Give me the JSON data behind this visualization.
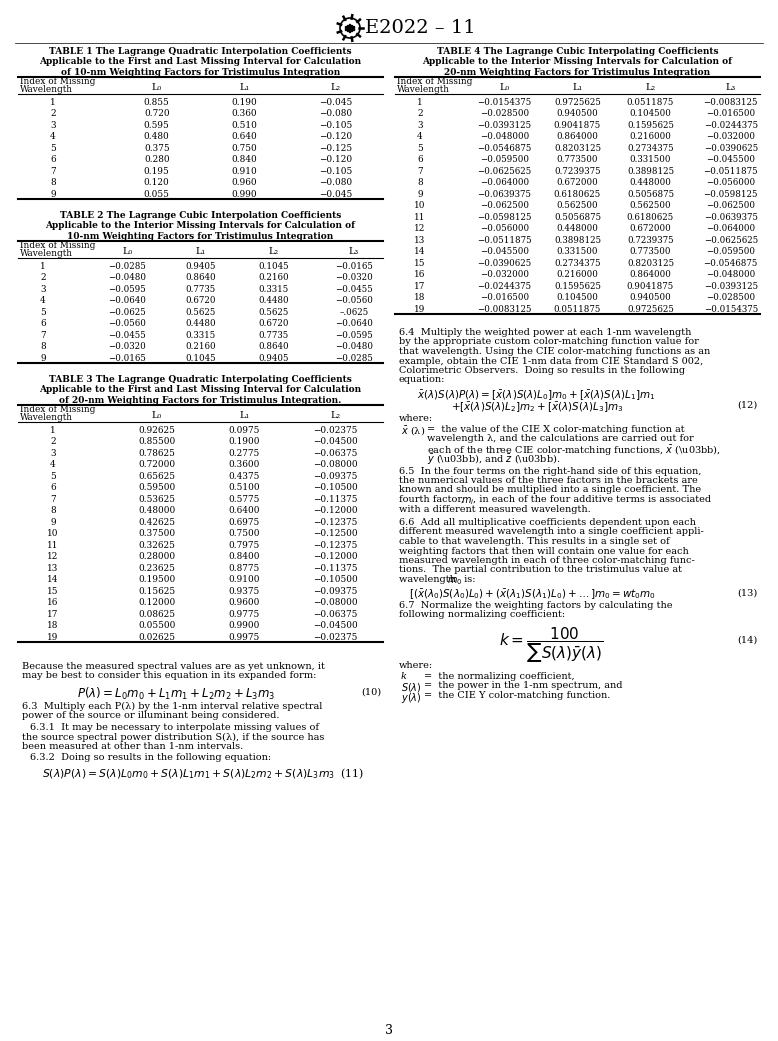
{
  "header": "E2022 – 11",
  "page_num": "3",
  "table1_title": "TABLE 1 The Lagrange Quadratic Interpolation Coefficients\nApplicable to the First and Last Missing Interval for Calculation\nof 10-nm Weighting Factors for Tristimulus Integration",
  "table1_data": [
    [
      "1",
      "0.855",
      "0.190",
      "−0.045"
    ],
    [
      "2",
      "0.720",
      "0.360",
      "−0.080"
    ],
    [
      "3",
      "0.595",
      "0.510",
      "−0.105"
    ],
    [
      "4",
      "0.480",
      "0.640",
      "−0.120"
    ],
    [
      "5",
      "0.375",
      "0.750",
      "−0.125"
    ],
    [
      "6",
      "0.280",
      "0.840",
      "−0.120"
    ],
    [
      "7",
      "0.195",
      "0.910",
      "−0.105"
    ],
    [
      "8",
      "0.120",
      "0.960",
      "−0.080"
    ],
    [
      "9",
      "0.055",
      "0.990",
      "−0.045"
    ]
  ],
  "table2_title": "TABLE 2 The Lagrange Cubic Interpolation Coefficients\nApplicable to the Interior Missing Intervals for Calculation of\n10-nm Weighting Factors for Tristimulus Integration",
  "table2_data": [
    [
      "1",
      "−0.0285",
      "0.9405",
      "0.1045",
      "−0.0165"
    ],
    [
      "2",
      "−0.0480",
      "0.8640",
      "0.2160",
      "−0.0320"
    ],
    [
      "3",
      "−0.0595",
      "0.7735",
      "0.3315",
      "−0.0455"
    ],
    [
      "4",
      "−0.0640",
      "0.6720",
      "0.4480",
      "−0.0560"
    ],
    [
      "5",
      "−0.0625",
      "0.5625",
      "0.5625",
      "–.0625"
    ],
    [
      "6",
      "−0.0560",
      "0.4480",
      "0.6720",
      "−0.0640"
    ],
    [
      "7",
      "−0.0455",
      "0.3315",
      "0.7735",
      "−0.0595"
    ],
    [
      "8",
      "−0.0320",
      "0.2160",
      "0.8640",
      "−0.0480"
    ],
    [
      "9",
      "−0.0165",
      "0.1045",
      "0.9405",
      "−0.0285"
    ]
  ],
  "table3_title": "TABLE 3 The Lagrange Quadratic Interpolating Coefficients\nApplicable to the First and Last Missing Interval for Calculation\nof 20-nm Weighting Factors for Tristimulus Integration.",
  "table3_data": [
    [
      "1",
      "0.92625",
      "0.0975",
      "−0.02375"
    ],
    [
      "2",
      "0.85500",
      "0.1900",
      "−0.04500"
    ],
    [
      "3",
      "0.78625",
      "0.2775",
      "−0.06375"
    ],
    [
      "4",
      "0.72000",
      "0.3600",
      "−0.08000"
    ],
    [
      "5",
      "0.65625",
      "0.4375",
      "−0.09375"
    ],
    [
      "6",
      "0.59500",
      "0.5100",
      "−0.10500"
    ],
    [
      "7",
      "0.53625",
      "0.5775",
      "−0.11375"
    ],
    [
      "8",
      "0.48000",
      "0.6400",
      "−0.12000"
    ],
    [
      "9",
      "0.42625",
      "0.6975",
      "−0.12375"
    ],
    [
      "10",
      "0.37500",
      "0.7500",
      "−0.12500"
    ],
    [
      "11",
      "0.32625",
      "0.7975",
      "−0.12375"
    ],
    [
      "12",
      "0.28000",
      "0.8400",
      "−0.12000"
    ],
    [
      "13",
      "0.23625",
      "0.8775",
      "−0.11375"
    ],
    [
      "14",
      "0.19500",
      "0.9100",
      "−0.10500"
    ],
    [
      "15",
      "0.15625",
      "0.9375",
      "−0.09375"
    ],
    [
      "16",
      "0.12000",
      "0.9600",
      "−0.08000"
    ],
    [
      "17",
      "0.08625",
      "0.9775",
      "−0.06375"
    ],
    [
      "18",
      "0.05500",
      "0.9900",
      "−0.04500"
    ],
    [
      "19",
      "0.02625",
      "0.9975",
      "−0.02375"
    ]
  ],
  "table4_title": "TABLE 4 The Lagrange Cubic Interpolating Coefficients\nApplicable to the Interior Missing Intervals for Calculation of\n20-nm Weighting Factors for Tristimulus Integration",
  "table4_data": [
    [
      "1",
      "−0.0154375",
      "0.9725625",
      "0.0511875",
      "−0.0083125"
    ],
    [
      "2",
      "−0.028500",
      "0.940500",
      "0.104500",
      "−0.016500"
    ],
    [
      "3",
      "−0.0393125",
      "0.9041875",
      "0.1595625",
      "−0.0244375"
    ],
    [
      "4",
      "−0.048000",
      "0.864000",
      "0.216000",
      "−0.032000"
    ],
    [
      "5",
      "−0.0546875",
      "0.8203125",
      "0.2734375",
      "−0.0390625"
    ],
    [
      "6",
      "−0.059500",
      "0.773500",
      "0.331500",
      "−0.045500"
    ],
    [
      "7",
      "−0.0625625",
      "0.7239375",
      "0.3898125",
      "−0.0511875"
    ],
    [
      "8",
      "−0.064000",
      "0.672000",
      "0.448000",
      "−0.056000"
    ],
    [
      "9",
      "−0.0639375",
      "0.6180625",
      "0.5056875",
      "−0.0598125"
    ],
    [
      "10",
      "−0.062500",
      "0.562500",
      "0.562500",
      "−0.062500"
    ],
    [
      "11",
      "−0.0598125",
      "0.5056875",
      "0.6180625",
      "−0.0639375"
    ],
    [
      "12",
      "−0.056000",
      "0.448000",
      "0.672000",
      "−0.064000"
    ],
    [
      "13",
      "−0.0511875",
      "0.3898125",
      "0.7239375",
      "−0.0625625"
    ],
    [
      "14",
      "−0.045500",
      "0.331500",
      "0.773500",
      "−0.059500"
    ],
    [
      "15",
      "−0.0390625",
      "0.2734375",
      "0.8203125",
      "−0.0546875"
    ],
    [
      "16",
      "−0.032000",
      "0.216000",
      "0.864000",
      "−0.048000"
    ],
    [
      "17",
      "−0.0244375",
      "0.1595625",
      "0.9041875",
      "−0.0393125"
    ],
    [
      "18",
      "−0.016500",
      "0.104500",
      "0.940500",
      "−0.028500"
    ],
    [
      "19",
      "−0.0083125",
      "0.0511875",
      "0.9725625",
      "−0.0154375"
    ]
  ]
}
